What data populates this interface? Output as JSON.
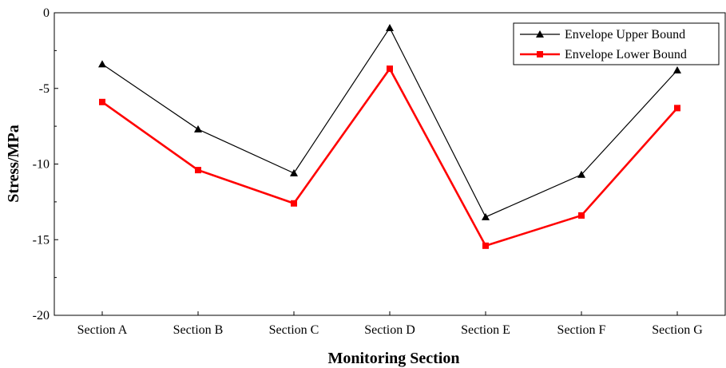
{
  "chart_data": {
    "type": "line",
    "categories": [
      "Section A",
      "Section B",
      "Section C",
      "Section D",
      "Section E",
      "Section F",
      "Section G"
    ],
    "series": [
      {
        "name": "Envelope Upper Bound",
        "values": [
          -3.4,
          -7.7,
          -10.6,
          -1.0,
          -13.5,
          -10.7,
          -3.8
        ],
        "color": "#000000",
        "marker": "triangle"
      },
      {
        "name": "Envelope Lower Bound",
        "values": [
          -5.9,
          -10.4,
          -12.6,
          -3.7,
          -15.4,
          -13.4,
          -6.3
        ],
        "color": "#ff0000",
        "marker": "square"
      }
    ],
    "title": "",
    "xlabel": "Monitoring Section",
    "ylabel": "Stress/MPa",
    "ylim": [
      -20,
      0
    ],
    "yticks": [
      0,
      -5,
      -10,
      -15,
      -20
    ],
    "ytick_labels": [
      "0",
      "-5",
      "-10",
      "-15",
      "-20"
    ],
    "grid": false,
    "legend_position": "top-right"
  }
}
